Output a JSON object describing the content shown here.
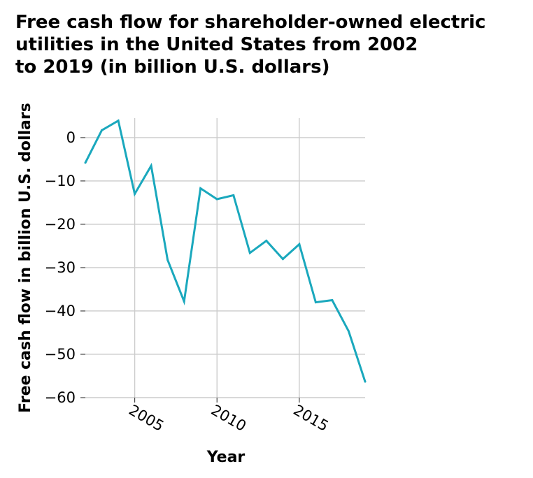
{
  "title_lines": [
    "Free cash flow for shareholder-owned electric",
    "utilities in the United States from 2002",
    "to 2019 (in billion U.S. dollars)"
  ],
  "colors": {
    "line": "#1aa8bd",
    "grid": "#cccccc",
    "text": "#000000"
  },
  "chart_data": {
    "type": "line",
    "title": "Free cash flow for shareholder-owned electric utilities in the United States from 2002 to 2019 (in billion U.S. dollars)",
    "xlabel": "Year",
    "ylabel": "Free cash flow in billion U.S. dollars",
    "xlim": [
      2002,
      2019
    ],
    "ylim": [
      -60,
      4.5
    ],
    "x_ticks": [
      2005,
      2010,
      2015
    ],
    "y_ticks": [
      0,
      -10,
      -20,
      -30,
      -40,
      -50,
      -60
    ],
    "grid": true,
    "x": [
      2002,
      2003,
      2004,
      2005,
      2006,
      2007,
      2008,
      2009,
      2010,
      2011,
      2012,
      2013,
      2014,
      2015,
      2016,
      2017,
      2018,
      2019
    ],
    "series": [
      {
        "values": [
          -5.8,
          1.7,
          3.9,
          -13.0,
          -6.5,
          -28.2,
          -37.8,
          -11.7,
          -14.2,
          -13.3,
          -26.6,
          -23.8,
          -28.0,
          -24.6,
          -38.0,
          -37.5,
          -44.7,
          -56.3
        ]
      }
    ]
  }
}
